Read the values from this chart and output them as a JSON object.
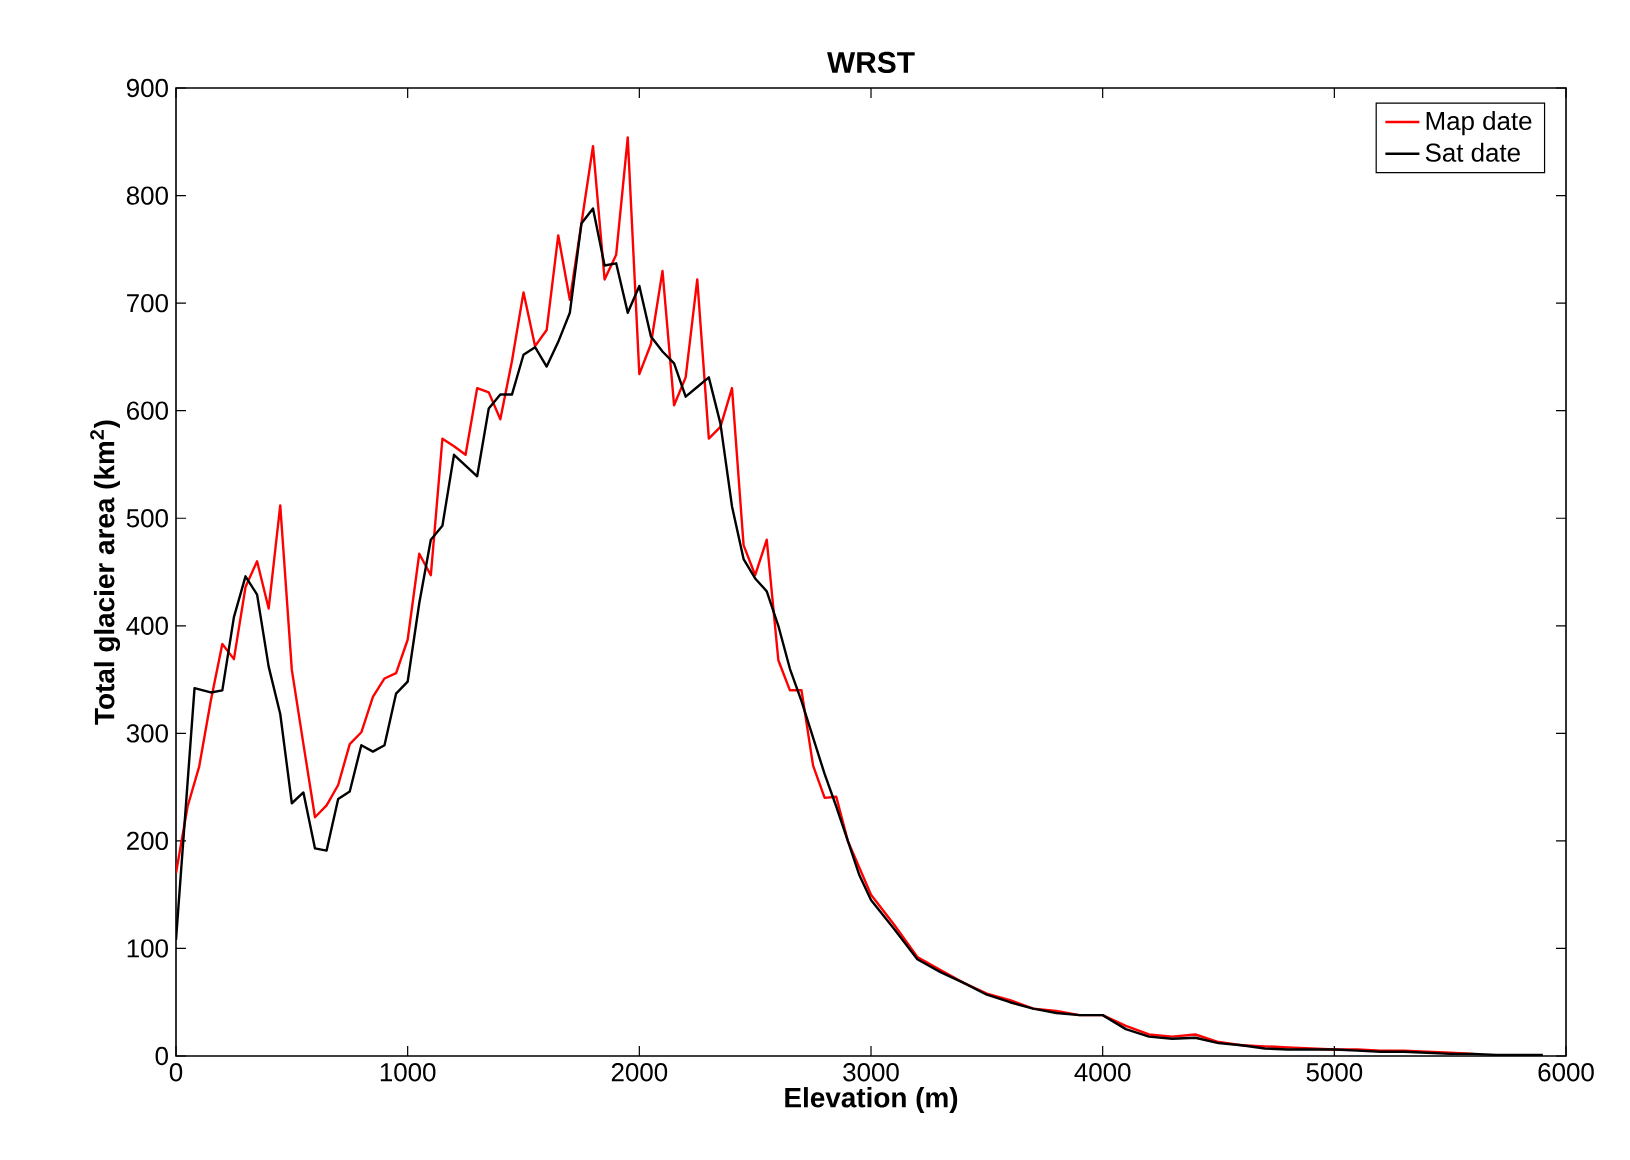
{
  "chart_data": {
    "type": "line",
    "title": "WRST",
    "xlabel": "Elevation (m)",
    "ylabel": "Total glacier area (km$^{2}$)",
    "xlim": [
      0,
      6000
    ],
    "ylim": [
      0,
      900
    ],
    "xticks": [
      0,
      1000,
      2000,
      3000,
      4000,
      5000,
      6000
    ],
    "yticks": [
      0,
      100,
      200,
      300,
      400,
      500,
      600,
      700,
      800,
      900
    ],
    "grid": false,
    "legend": "top right",
    "series": [
      {
        "name": "Map date",
        "color": "#ff0000",
        "x": [
          0,
          50,
          100,
          150,
          200,
          250,
          300,
          350,
          400,
          450,
          500,
          550,
          600,
          650,
          700,
          750,
          800,
          850,
          900,
          950,
          1000,
          1050,
          1100,
          1150,
          1200,
          1250,
          1300,
          1350,
          1400,
          1450,
          1500,
          1550,
          1600,
          1650,
          1700,
          1750,
          1800,
          1850,
          1900,
          1950,
          2000,
          2050,
          2100,
          2150,
          2200,
          2250,
          2300,
          2350,
          2400,
          2450,
          2500,
          2550,
          2600,
          2650,
          2700,
          2750,
          2800,
          2850,
          2900,
          2950,
          3000,
          3100,
          3200,
          3300,
          3400,
          3500,
          3600,
          3700,
          3800,
          3900,
          4000,
          4100,
          4200,
          4300,
          4400,
          4500,
          4600,
          4700,
          4800,
          4900,
          5000,
          5100,
          5200,
          5300,
          5400,
          5500,
          5600
        ],
        "values": [
          170,
          232,
          269,
          330,
          383,
          369,
          436,
          460,
          416,
          512,
          359,
          290,
          222,
          233,
          252,
          290,
          301,
          334,
          351,
          356,
          387,
          467,
          447,
          574,
          567,
          559,
          621,
          617,
          592,
          646,
          710,
          660,
          675,
          763,
          703,
          774,
          846,
          722,
          745,
          854,
          634,
          662,
          730,
          605,
          631,
          722,
          574,
          585,
          621,
          475,
          447,
          480,
          368,
          340,
          340,
          270,
          240,
          241,
          200,
          175,
          150,
          122,
          92,
          80,
          68,
          58,
          52,
          44,
          42,
          38,
          38,
          28,
          20,
          18,
          20,
          13,
          10,
          9,
          8,
          7,
          6,
          6,
          5,
          5,
          4,
          3,
          2
        ]
      },
      {
        "name": "Sat date",
        "color": "#000000",
        "x": [
          0,
          80,
          150,
          200,
          250,
          300,
          350,
          400,
          450,
          500,
          550,
          600,
          650,
          700,
          750,
          800,
          850,
          900,
          950,
          1000,
          1050,
          1100,
          1150,
          1200,
          1250,
          1300,
          1350,
          1400,
          1450,
          1500,
          1550,
          1600,
          1650,
          1700,
          1750,
          1800,
          1850,
          1900,
          1950,
          2000,
          2050,
          2100,
          2150,
          2200,
          2250,
          2300,
          2350,
          2400,
          2450,
          2500,
          2550,
          2600,
          2650,
          2700,
          2750,
          2800,
          2850,
          2900,
          2950,
          3000,
          3100,
          3200,
          3300,
          3400,
          3500,
          3600,
          3700,
          3800,
          3900,
          4000,
          4100,
          4200,
          4300,
          4400,
          4500,
          4600,
          4700,
          4800,
          4900,
          5000,
          5100,
          5200,
          5300,
          5400,
          5500,
          5600,
          5700,
          5800,
          5900
        ],
        "values": [
          108,
          342,
          338,
          340,
          408,
          446,
          429,
          362,
          318,
          235,
          245,
          193,
          191,
          239,
          246,
          289,
          283,
          289,
          337,
          348,
          421,
          480,
          493,
          559,
          549,
          539,
          602,
          615,
          615,
          652,
          659,
          641,
          664,
          691,
          774,
          788,
          735,
          737,
          691,
          716,
          669,
          655,
          644,
          613,
          622,
          631,
          588,
          511,
          462,
          444,
          432,
          400,
          360,
          330,
          296,
          262,
          232,
          200,
          168,
          145,
          118,
          90,
          78,
          68,
          57,
          50,
          44,
          40,
          38,
          38,
          25,
          18,
          16,
          17,
          12,
          10,
          7,
          6,
          6,
          6,
          5,
          4,
          4,
          3,
          2,
          2,
          1,
          1,
          1
        ]
      }
    ]
  }
}
